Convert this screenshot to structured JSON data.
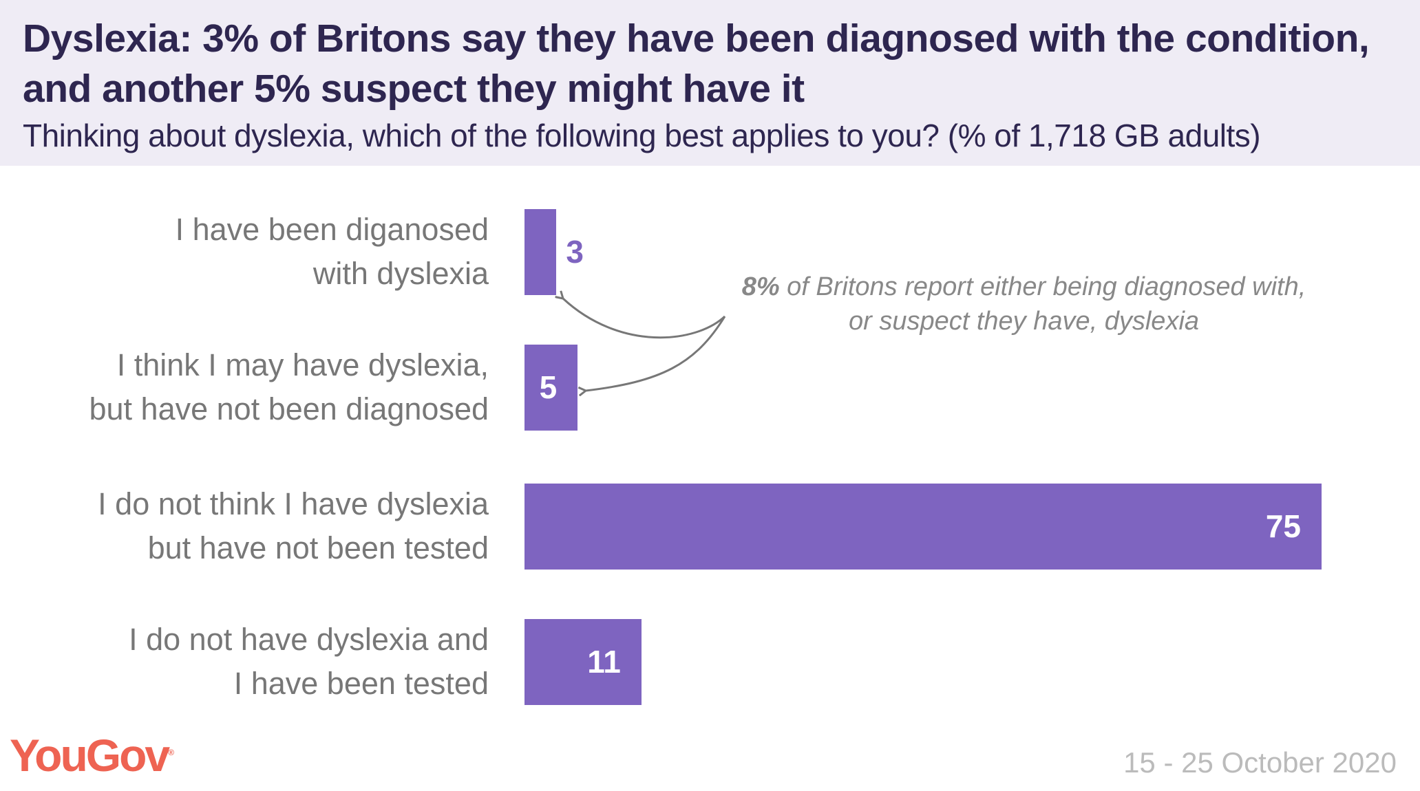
{
  "header": {
    "title": "Dyslexia: 3% of Britons say they have been diagnosed with the condition, and another 5% suspect they might have it",
    "subtitle": "Thinking about dyslexia, which of the following best applies to you?  (% of 1,718 GB adults)"
  },
  "chart_data": {
    "type": "bar",
    "orientation": "horizontal",
    "categories": [
      "I have been diganosed with dyslexia",
      "I think I may have dyslexia, but have not been diagnosed",
      "I do not think I have dyslexia but have not been tested",
      "I do not have dyslexia and I have been tested"
    ],
    "category_lines": [
      [
        "I have been diganosed",
        "with dyslexia"
      ],
      [
        "I think I may have dyslexia,",
        "but have not been diagnosed"
      ],
      [
        "I do not think I have dyslexia",
        "but have not been tested"
      ],
      [
        "I do not have dyslexia and",
        "I have been tested"
      ]
    ],
    "values": [
      3,
      5,
      75,
      11
    ],
    "value_labels": [
      "3",
      "5",
      "75",
      "11"
    ],
    "xlim": [
      0,
      75
    ],
    "grid": false,
    "bar_color": "#7e64c0",
    "annotation": {
      "bold": "8%",
      "line1": " of Britons report either being diagnosed with,",
      "line2": "or suspect they have, dyslexia"
    }
  },
  "footer": {
    "logo": "YouGov",
    "logo_color": "#ee6352",
    "date": "15 - 25 October 2020"
  }
}
